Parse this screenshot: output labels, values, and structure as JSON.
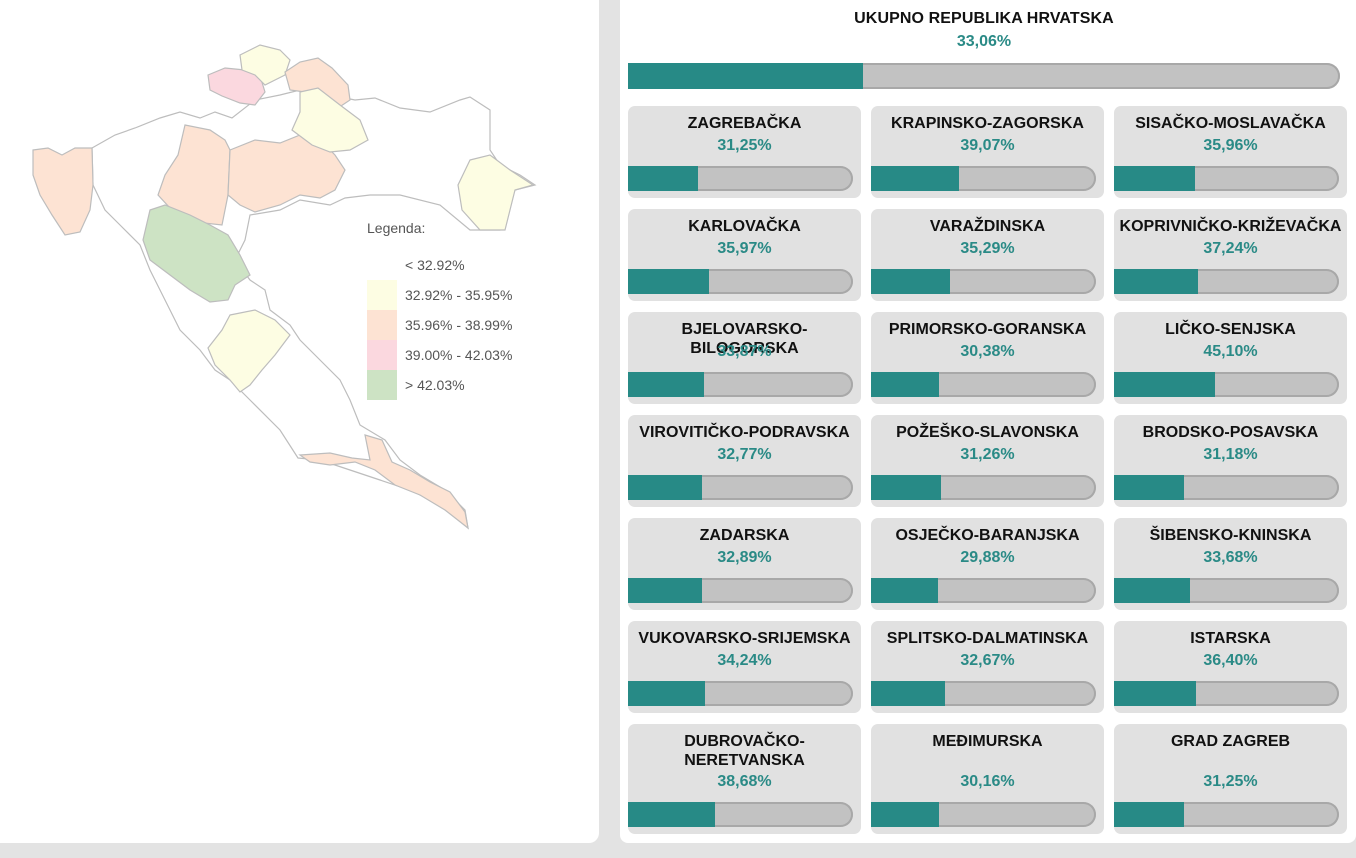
{
  "colors": {
    "accent": "#278a86",
    "bar_track": "#c2c2c2",
    "card_bg": "#e1e1e1"
  },
  "legend": {
    "title": "Legenda:",
    "items": [
      {
        "label": "< 32.92%",
        "color": "#ffffff"
      },
      {
        "label": "32.92% - 35.95%",
        "color": "#fdfde3"
      },
      {
        "label": "35.96% - 38.99%",
        "color": "#fde3d3"
      },
      {
        "label": "39.00% - 42.03%",
        "color": "#fbd8df"
      },
      {
        "label": "> 42.03%",
        "color": "#cde3c4"
      }
    ]
  },
  "total": {
    "name": "UKUPNO REPUBLIKA HRVATSKA",
    "pct_label": "33,06%",
    "value": 33.06
  },
  "counties": [
    {
      "name": "ZAGREBAČKA",
      "pct_label": "31,25%",
      "value": 31.25
    },
    {
      "name": "KRAPINSKO-ZAGORSKA",
      "pct_label": "39,07%",
      "value": 39.07
    },
    {
      "name": "SISAČKO-MOSLAVAČKA",
      "pct_label": "35,96%",
      "value": 35.96
    },
    {
      "name": "KARLOVAČKA",
      "pct_label": "35,97%",
      "value": 35.97
    },
    {
      "name": "VARAŽDINSKA",
      "pct_label": "35,29%",
      "value": 35.29
    },
    {
      "name": "KOPRIVNIČKO-KRIŽEVAČKA",
      "pct_label": "37,24%",
      "value": 37.24
    },
    {
      "name": "BJELOVARSKO-BILOGORSKA",
      "pct_label": "33,87%",
      "value": 33.87
    },
    {
      "name": "PRIMORSKO-GORANSKA",
      "pct_label": "30,38%",
      "value": 30.38
    },
    {
      "name": "LIČKO-SENJSKA",
      "pct_label": "45,10%",
      "value": 45.1
    },
    {
      "name": "VIROVITIČKO-PODRAVSKA",
      "pct_label": "32,77%",
      "value": 32.77
    },
    {
      "name": "POŽEŠKO-SLAVONSKA",
      "pct_label": "31,26%",
      "value": 31.26
    },
    {
      "name": "BRODSKO-POSAVSKA",
      "pct_label": "31,18%",
      "value": 31.18
    },
    {
      "name": "ZADARSKA",
      "pct_label": "32,89%",
      "value": 32.89
    },
    {
      "name": "OSJEČKO-BARANJSKA",
      "pct_label": "29,88%",
      "value": 29.88
    },
    {
      "name": "ŠIBENSKO-KNINSKA",
      "pct_label": "33,68%",
      "value": 33.68
    },
    {
      "name": "VUKOVARSKO-SRIJEMSKA",
      "pct_label": "34,24%",
      "value": 34.24
    },
    {
      "name": "SPLITSKO-DALMATINSKA",
      "pct_label": "32,67%",
      "value": 32.67
    },
    {
      "name": "ISTARSKA",
      "pct_label": "36,40%",
      "value": 36.4
    },
    {
      "name": "DUBROVAČKO-NERETVANSKA",
      "pct_label": "38,68%",
      "value": 38.68
    },
    {
      "name": "MEĐIMURSKA",
      "pct_label": "30,16%",
      "value": 30.16
    },
    {
      "name": "GRAD ZAGREB",
      "pct_label": "31,25%",
      "value": 31.25
    }
  ]
}
